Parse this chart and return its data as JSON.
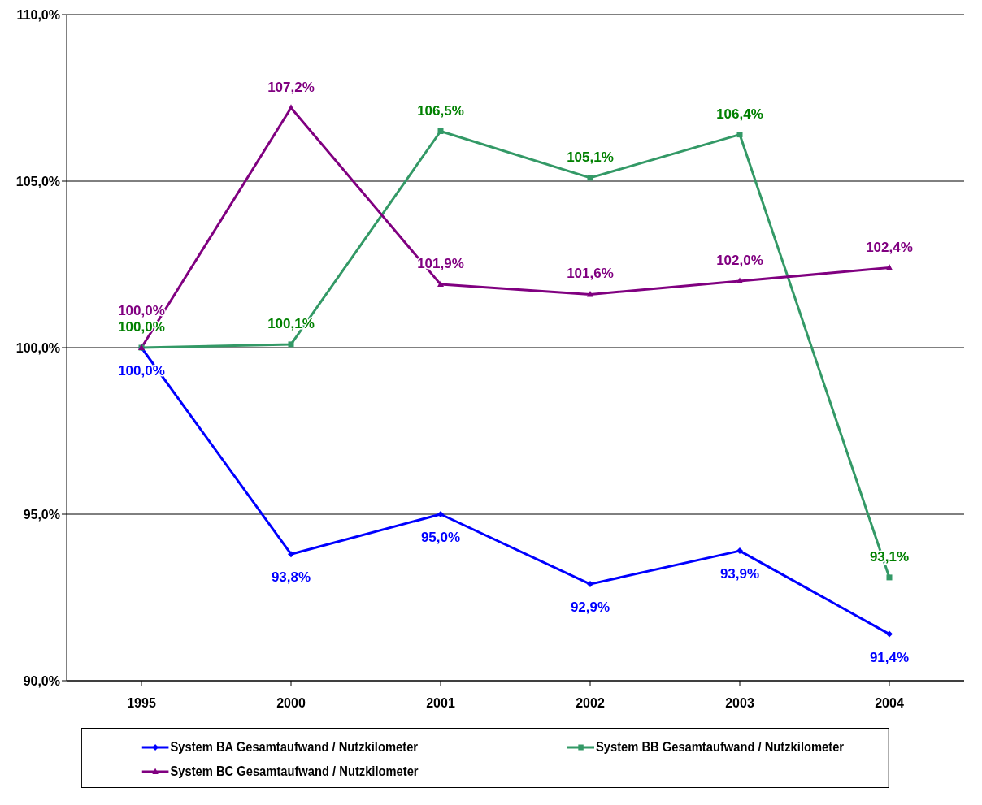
{
  "chart_data": {
    "type": "line",
    "categories": [
      "1995",
      "2000",
      "2001",
      "2002",
      "2003",
      "2004"
    ],
    "series": [
      {
        "name": "System BA  Gesamtaufwand / Nutzkilometer",
        "color": "#0000ff",
        "marker": "diamond",
        "values": [
          100.0,
          93.8,
          95.0,
          92.9,
          93.9,
          91.4
        ],
        "value_labels": [
          "100,0%",
          "93,8%",
          "95,0%",
          "92,9%",
          "93,9%",
          "91,4%"
        ]
      },
      {
        "name": "System BB  Gesamtaufwand / Nutzkilometer",
        "color": "#339966",
        "marker": "square",
        "values": [
          100.0,
          100.1,
          106.5,
          105.1,
          106.4,
          93.1
        ],
        "value_labels": [
          "100,0%",
          "100,1%",
          "106,5%",
          "105,1%",
          "106,4%",
          "93,1%"
        ]
      },
      {
        "name": "System BC  Gesamtaufwand / Nutzkilometer",
        "color": "#800080",
        "marker": "triangle",
        "values": [
          100.0,
          107.2,
          101.9,
          101.6,
          102.0,
          102.4
        ],
        "value_labels": [
          "100,0%",
          "107,2%",
          "101,9%",
          "101,6%",
          "102,0%",
          "102,4%"
        ]
      }
    ],
    "ylim": [
      90,
      110
    ],
    "yticks": [
      {
        "value": 90,
        "label": "90,0%"
      },
      {
        "value": 95,
        "label": "95,0%"
      },
      {
        "value": 100,
        "label": "100,0%"
      },
      {
        "value": 105,
        "label": "105,0%"
      },
      {
        "value": 110,
        "label": "110,0%"
      }
    ],
    "grid": "y",
    "legend": "bottom",
    "line_style": "solid"
  }
}
